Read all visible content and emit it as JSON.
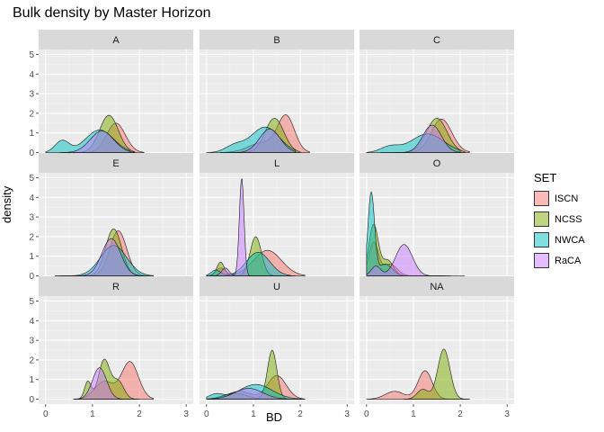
{
  "title": "Bulk density by Master Horizon",
  "chart_data": {
    "type": "area",
    "title": "Bulk density by Master Horizon",
    "xlabel": "BD",
    "ylabel": "density",
    "xlim": [
      0,
      3
    ],
    "ylim": [
      0,
      5
    ],
    "x_ticks": [
      "0",
      "1",
      "2",
      "3"
    ],
    "y_ticks": [
      "0",
      "1",
      "2",
      "3",
      "4",
      "5"
    ],
    "legend": {
      "title": "SET",
      "placement": "right",
      "entries": [
        {
          "name": "ISCN",
          "color": "#F8766D"
        },
        {
          "name": "NCSS",
          "color": "#7CAE00"
        },
        {
          "name": "NWCA",
          "color": "#00BFC4"
        },
        {
          "name": "RaCA",
          "color": "#C77CFF"
        }
      ]
    },
    "facets": [
      {
        "label": "A",
        "series": [
          {
            "name": "ISCN",
            "peaks": [
              [
                1.5,
                1.5,
                0.2
              ]
            ],
            "range": [
              0.4,
              2.1
            ]
          },
          {
            "name": "NCSS",
            "peaks": [
              [
                1.35,
                1.9,
                0.2
              ]
            ],
            "range": [
              0.4,
              1.9
            ]
          },
          {
            "name": "NWCA",
            "peaks": [
              [
                0.35,
                0.6,
                0.15
              ],
              [
                1.15,
                1.15,
                0.3
              ]
            ],
            "range": [
              0.0,
              1.8
            ]
          },
          {
            "name": "RaCA",
            "peaks": [
              [
                1.2,
                1.1,
                0.25
              ]
            ],
            "range": [
              0.3,
              1.9
            ]
          }
        ]
      },
      {
        "label": "B",
        "series": [
          {
            "name": "ISCN",
            "peaks": [
              [
                1.7,
                1.8,
                0.18
              ],
              [
                1.2,
                0.5,
                0.3
              ]
            ],
            "range": [
              0.3,
              2.2
            ]
          },
          {
            "name": "NCSS",
            "peaks": [
              [
                1.45,
                1.75,
                0.2
              ]
            ],
            "range": [
              0.3,
              2.0
            ]
          },
          {
            "name": "NWCA",
            "peaks": [
              [
                0.6,
                0.35,
                0.2
              ],
              [
                1.25,
                1.3,
                0.3
              ]
            ],
            "range": [
              0.0,
              1.9
            ]
          },
          {
            "name": "RaCA",
            "peaks": [
              [
                1.35,
                1.2,
                0.22
              ]
            ],
            "range": [
              0.4,
              1.9
            ]
          }
        ]
      },
      {
        "label": "C",
        "series": [
          {
            "name": "ISCN",
            "peaks": [
              [
                1.6,
                1.7,
                0.22
              ]
            ],
            "range": [
              0.3,
              2.2
            ]
          },
          {
            "name": "NCSS",
            "peaks": [
              [
                1.5,
                1.75,
                0.22
              ]
            ],
            "range": [
              0.3,
              2.1
            ]
          },
          {
            "name": "NWCA",
            "peaks": [
              [
                0.5,
                0.3,
                0.2
              ],
              [
                1.3,
                0.95,
                0.35
              ]
            ],
            "range": [
              0.0,
              2.0
            ]
          },
          {
            "name": "RaCA",
            "peaks": [
              [
                1.4,
                1.4,
                0.2
              ]
            ],
            "range": [
              0.6,
              2.0
            ]
          }
        ]
      },
      {
        "label": "E",
        "series": [
          {
            "name": "ISCN",
            "peaks": [
              [
                1.55,
                2.3,
                0.18
              ]
            ],
            "range": [
              0.3,
              2.2
            ]
          },
          {
            "name": "NCSS",
            "peaks": [
              [
                1.45,
                2.4,
                0.17
              ]
            ],
            "range": [
              0.2,
              2.1
            ]
          },
          {
            "name": "NWCA",
            "peaks": [
              [
                1.45,
                1.55,
                0.28
              ]
            ],
            "range": [
              0.2,
              2.3
            ]
          },
          {
            "name": "RaCA",
            "peaks": [
              [
                1.4,
                1.9,
                0.2
              ]
            ],
            "range": [
              0.4,
              2.1
            ]
          }
        ]
      },
      {
        "label": "L",
        "series": [
          {
            "name": "ISCN",
            "peaks": [
              [
                1.3,
                1.3,
                0.3
              ],
              [
                0.3,
                0.4,
                0.1
              ]
            ],
            "range": [
              0.0,
              2.1
            ]
          },
          {
            "name": "NCSS",
            "peaks": [
              [
                1.05,
                2.0,
                0.12
              ],
              [
                0.3,
                0.7,
                0.08
              ]
            ],
            "range": [
              0.0,
              1.9
            ]
          },
          {
            "name": "NWCA",
            "peaks": [
              [
                0.2,
                0.3,
                0.1
              ],
              [
                1.1,
                1.2,
                0.25
              ]
            ],
            "range": [
              0.0,
              1.8
            ]
          },
          {
            "name": "RaCA",
            "peaks": [
              [
                0.75,
                5.0,
                0.05
              ],
              [
                0.4,
                0.4,
                0.08
              ]
            ],
            "range": [
              0.1,
              1.6
            ]
          }
        ]
      },
      {
        "label": "O",
        "series": [
          {
            "name": "ISCN",
            "peaks": [
              [
                0.15,
                1.7,
                0.1
              ],
              [
                0.5,
                0.6,
                0.15
              ]
            ],
            "range": [
              0.0,
              1.8
            ]
          },
          {
            "name": "NCSS",
            "peaks": [
              [
                0.15,
                2.6,
                0.1
              ],
              [
                0.45,
                0.8,
                0.12
              ]
            ],
            "range": [
              0.0,
              1.7
            ]
          },
          {
            "name": "NWCA",
            "peaks": [
              [
                0.1,
                4.2,
                0.07
              ],
              [
                0.4,
                0.6,
                0.15
              ]
            ],
            "range": [
              0.0,
              1.6
            ]
          },
          {
            "name": "RaCA",
            "peaks": [
              [
                0.8,
                1.6,
                0.18
              ],
              [
                0.2,
                0.5,
                0.1
              ]
            ],
            "range": [
              0.0,
              2.1
            ]
          }
        ]
      },
      {
        "label": "R",
        "series": [
          {
            "name": "ISCN",
            "peaks": [
              [
                1.8,
                1.9,
                0.18
              ],
              [
                1.25,
                0.9,
                0.2
              ]
            ],
            "range": [
              0.6,
              2.3
            ]
          },
          {
            "name": "NCSS",
            "peaks": [
              [
                1.25,
                2.0,
                0.12
              ],
              [
                0.9,
                0.9,
                0.07
              ],
              [
                1.55,
                0.9,
                0.12
              ]
            ],
            "range": [
              0.6,
              2.0
            ]
          },
          {
            "name": "RaCA",
            "peaks": [
              [
                1.15,
                1.6,
                0.15
              ]
            ],
            "range": [
              0.6,
              1.8
            ]
          }
        ]
      },
      {
        "label": "U",
        "series": [
          {
            "name": "ISCN",
            "peaks": [
              [
                1.5,
                1.2,
                0.2
              ],
              [
                0.7,
                0.4,
                0.25
              ]
            ],
            "range": [
              0.0,
              2.1
            ]
          },
          {
            "name": "NCSS",
            "peaks": [
              [
                1.4,
                2.5,
                0.1
              ],
              [
                0.6,
                0.3,
                0.25
              ]
            ],
            "range": [
              0.0,
              2.0
            ]
          },
          {
            "name": "NWCA",
            "peaks": [
              [
                1.05,
                0.75,
                0.35
              ],
              [
                0.2,
                0.25,
                0.15
              ]
            ],
            "range": [
              0.0,
              2.1
            ]
          },
          {
            "name": "RaCA",
            "peaks": [
              [
                0.9,
                0.55,
                0.3
              ]
            ],
            "range": [
              0.0,
              1.8
            ]
          }
        ]
      },
      {
        "label": "NA",
        "series": [
          {
            "name": "ISCN",
            "peaks": [
              [
                1.25,
                1.45,
                0.15
              ],
              [
                0.6,
                0.4,
                0.2
              ]
            ],
            "range": [
              0.0,
              2.2
            ]
          },
          {
            "name": "NCSS",
            "peaks": [
              [
                1.65,
                2.55,
                0.13
              ],
              [
                1.2,
                0.5,
                0.12
              ]
            ],
            "range": [
              0.8,
              2.2
            ]
          }
        ]
      }
    ]
  },
  "legend_title": "SET",
  "legend_labels": [
    "ISCN",
    "NCSS",
    "NWCA",
    "RaCA"
  ]
}
